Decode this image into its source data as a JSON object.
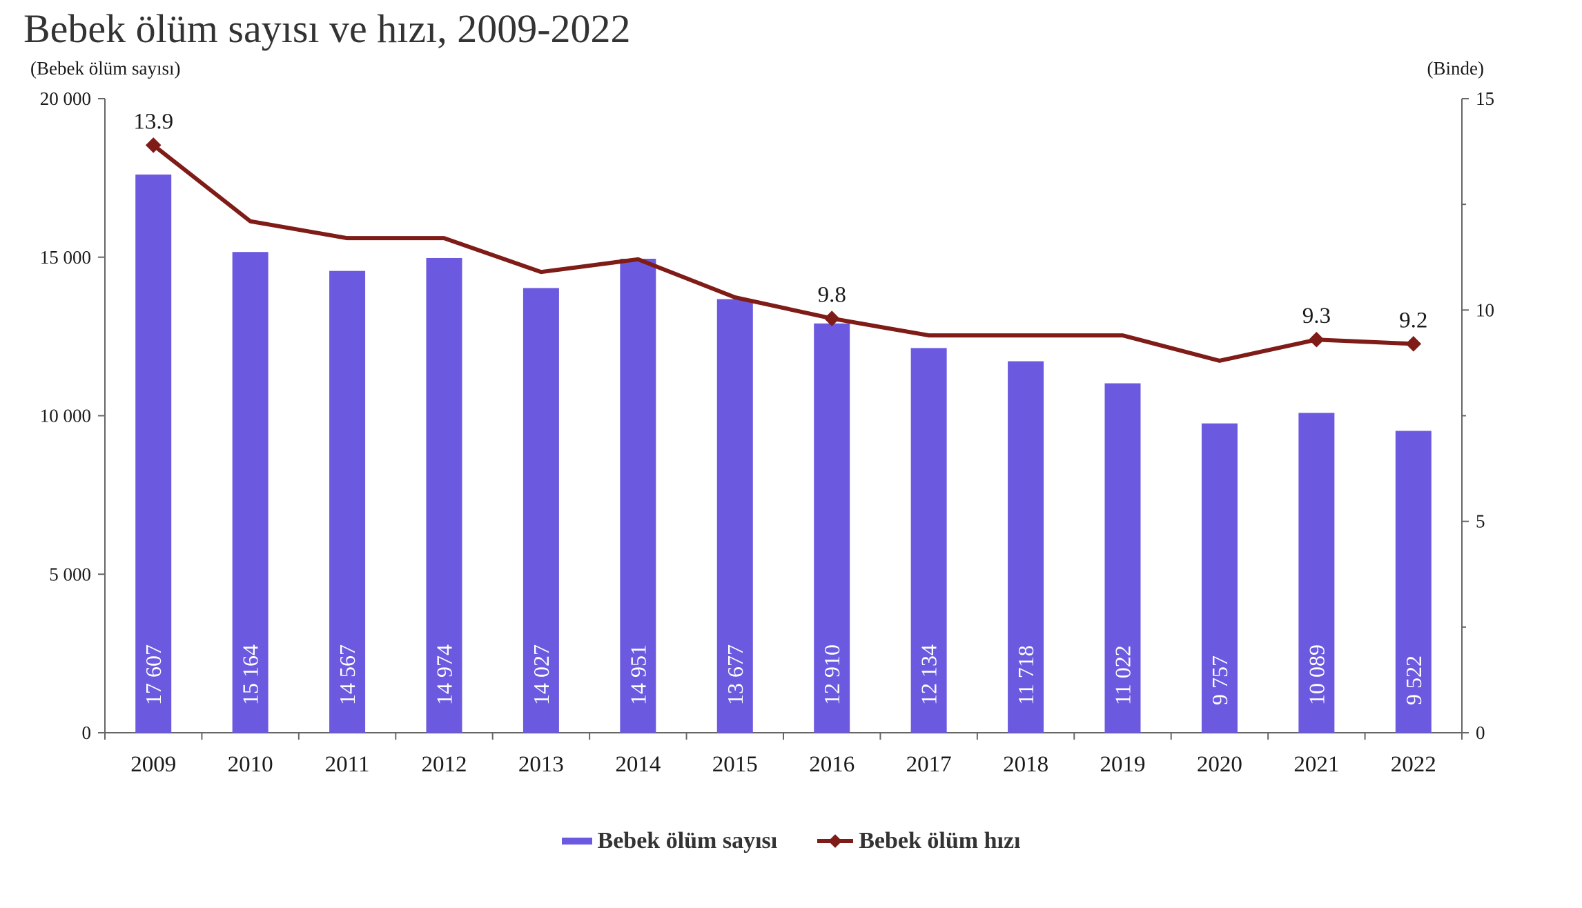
{
  "chart_data": {
    "type": "bar",
    "title": "Bebek ölüm sayısı ve hızı, 2009-2022",
    "y_left_label": "(Bebek ölüm sayısı)",
    "y_right_label": "(Binde)",
    "categories": [
      "2009",
      "2010",
      "2011",
      "2012",
      "2013",
      "2014",
      "2015",
      "2016",
      "2017",
      "2018",
      "2019",
      "2020",
      "2021",
      "2022"
    ],
    "y_left_lim": [
      0,
      20000
    ],
    "y_left_ticks": [
      0,
      5000,
      10000,
      15000,
      20000
    ],
    "y_left_tick_labels": [
      "0",
      "5 000",
      "10 000",
      "15 000",
      "20 000"
    ],
    "y_right_lim": [
      0,
      15
    ],
    "y_right_ticks": [
      0,
      5,
      10,
      15
    ],
    "y_right_tick_labels": [
      "0",
      "5",
      "10",
      "15"
    ],
    "grid": false,
    "legend_position": "bottom",
    "series": [
      {
        "name": "Bebek ölüm sayısı",
        "type": "bar",
        "axis": "left",
        "color": "#6b5ae0",
        "values": [
          17607,
          15164,
          14567,
          14974,
          14027,
          14951,
          13677,
          12910,
          12134,
          11718,
          11022,
          9757,
          10089,
          9522
        ],
        "labels": [
          "17 607",
          "15 164",
          "14 567",
          "14 974",
          "14 027",
          "14 951",
          "13 677",
          "12 910",
          "12 134",
          "11 718",
          "11 022",
          "9 757",
          "10 089",
          "9 522"
        ]
      },
      {
        "name": "Bebek ölüm hızı",
        "type": "line",
        "axis": "right",
        "color": "#7f1c17",
        "values": [
          13.9,
          12.1,
          11.7,
          11.7,
          10.9,
          11.2,
          10.3,
          9.8,
          9.4,
          9.4,
          9.4,
          8.8,
          9.3,
          9.2
        ],
        "point_labels": [
          "13.9",
          "",
          "",
          "",
          "",
          "",
          "",
          "9.8",
          "",
          "",
          "",
          "",
          "9.3",
          "9.2"
        ]
      }
    ]
  }
}
